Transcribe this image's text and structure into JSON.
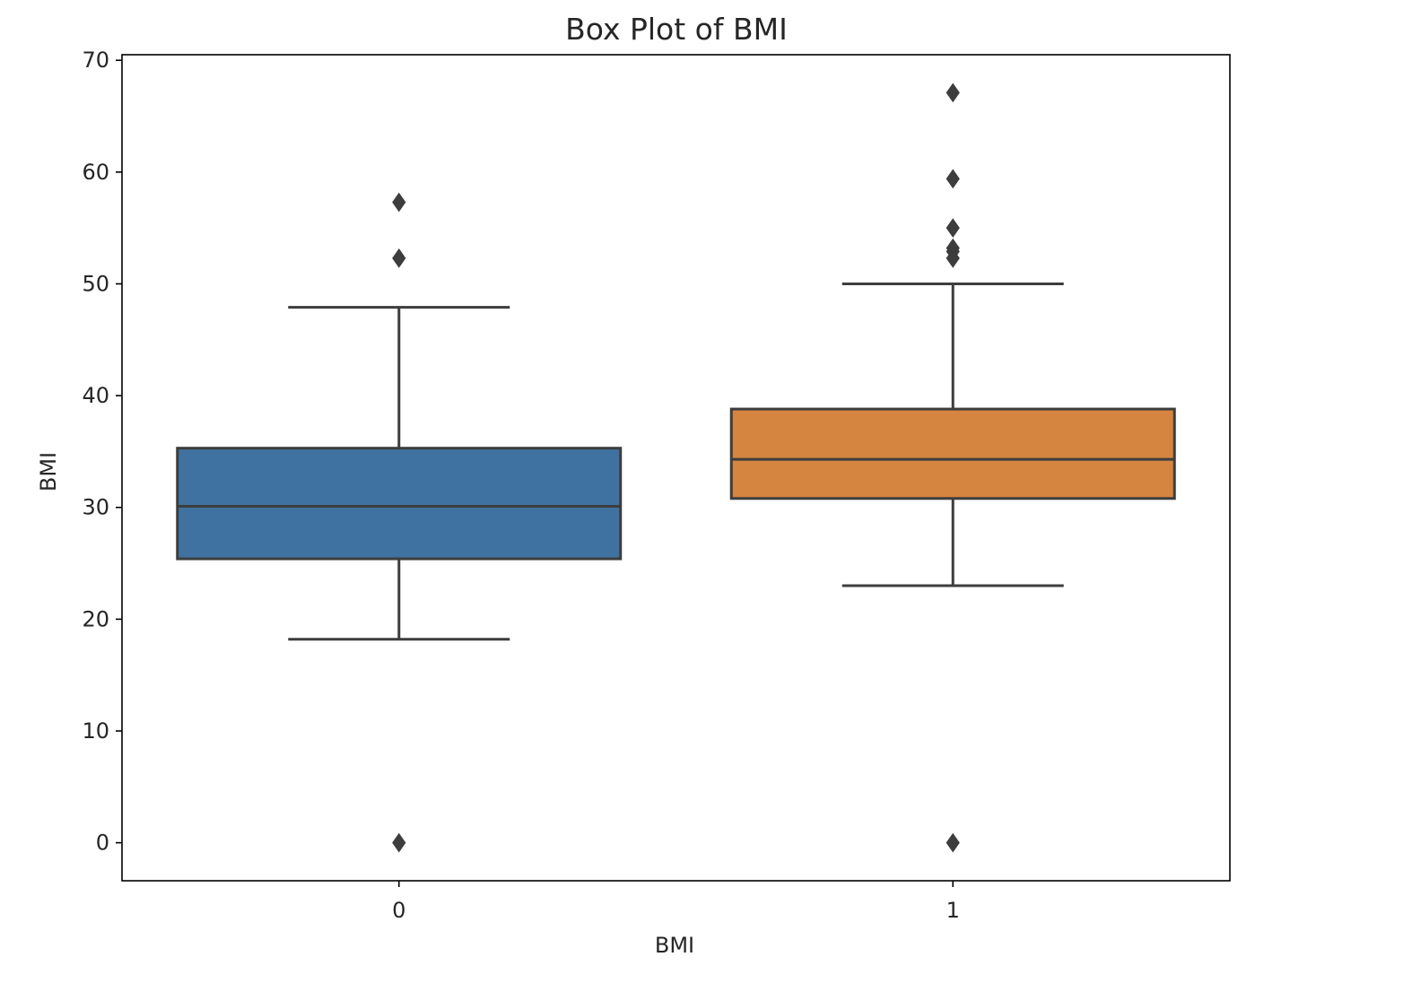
{
  "chart_data": {
    "type": "box",
    "title": "Box Plot of BMI",
    "xlabel": "BMI",
    "ylabel": "BMI",
    "categories": [
      "0",
      "1"
    ],
    "ylim": [
      -3.4,
      70.5
    ],
    "yticks": [
      0,
      10,
      20,
      30,
      40,
      50,
      60,
      70
    ],
    "ytick_labels": [
      "0",
      "10",
      "20",
      "30",
      "40",
      "50",
      "60",
      "70"
    ],
    "grid": false,
    "legend": "none",
    "boxes": [
      {
        "category": "0",
        "color": "#3f72a0",
        "whisker_low": 18.2,
        "q1": 25.4,
        "median": 30.1,
        "q3": 35.3,
        "whisker_high": 47.9,
        "outliers": [
          57.3,
          52.3,
          0.0
        ]
      },
      {
        "category": "1",
        "color": "#d58540",
        "whisker_low": 23.0,
        "q1": 30.8,
        "median": 34.3,
        "q3": 38.8,
        "whisker_high": 50.0,
        "outliers": [
          67.1,
          59.4,
          55.0,
          53.2,
          52.9,
          52.3,
          0.0
        ]
      }
    ],
    "outline_color": "#3d3d3d"
  }
}
